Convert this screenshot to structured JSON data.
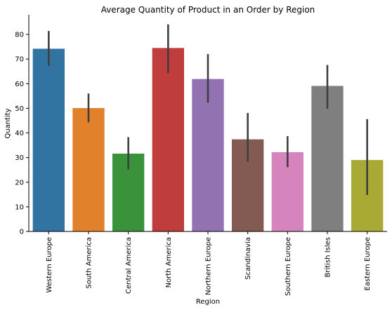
{
  "chart_data": {
    "type": "bar",
    "title": "Average Quantity of Product in an Order by Region",
    "xlabel": "Region",
    "ylabel": "Quantity",
    "ylim": [
      0,
      88
    ],
    "yticks": [
      0,
      10,
      20,
      30,
      40,
      50,
      60,
      70,
      80
    ],
    "categories": [
      "Western Europe",
      "South America",
      "Central America",
      "North America",
      "Northern Europe",
      "Scandinavia",
      "Southern Europe",
      "British Isles",
      "Eastern Europe"
    ],
    "values": [
      74.2,
      50.1,
      31.6,
      74.5,
      61.9,
      37.4,
      32.2,
      59.1,
      29.0
    ],
    "ci_low": [
      67.2,
      44.3,
      25.2,
      64.3,
      52.3,
      28.3,
      26.1,
      49.8,
      14.8
    ],
    "ci_high": [
      81.4,
      56.0,
      38.3,
      84.1,
      72.0,
      48.1,
      38.7,
      67.6,
      45.6
    ],
    "colors": [
      "#3274a1",
      "#e1812c",
      "#3a923a",
      "#c03d3e",
      "#9372b2",
      "#845b53",
      "#d684bd",
      "#7f7f7f",
      "#a9aa35"
    ],
    "grid": false,
    "legend": "none"
  }
}
